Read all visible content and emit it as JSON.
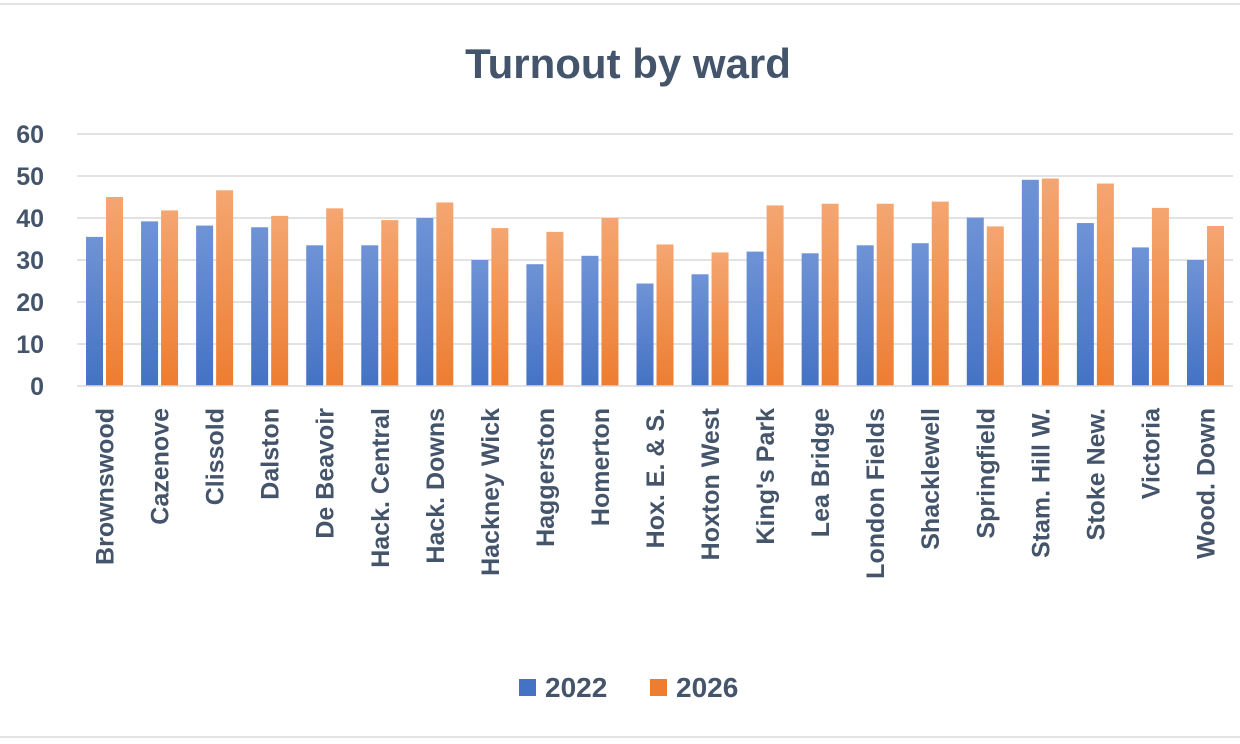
{
  "chart_data": {
    "type": "bar",
    "title": "Turnout by ward",
    "xlabel": "",
    "ylabel": "",
    "ylim": [
      0,
      60
    ],
    "yticks": [
      0,
      10,
      20,
      30,
      40,
      50,
      60
    ],
    "grid": true,
    "legend_position": "bottom",
    "categories": [
      "Brownswood",
      "Cazenove",
      "Clissold",
      "Dalston",
      "De Beavoir",
      "Hack. Central",
      "Hack. Downs",
      "Hackney Wick",
      "Haggerston",
      "Homerton",
      "Hox. E. & S.",
      "Hoxton West",
      "King's Park",
      "Lea Bridge",
      "London Fields",
      "Shacklewell",
      "Springfield",
      "Stam. Hill W.",
      "Stoke New.",
      "Victoria",
      "Wood. Down"
    ],
    "series": [
      {
        "name": "2022",
        "color": "#4472c4",
        "values": [
          35.5,
          39.2,
          38.2,
          37.8,
          33.5,
          33.5,
          40.0,
          30.0,
          29.0,
          31.0,
          24.4,
          26.6,
          32.0,
          31.6,
          33.5,
          34.0,
          40.1,
          49.1,
          38.8,
          33.0,
          30.0
        ]
      },
      {
        "name": "2026",
        "color": "#ed7d31",
        "values": [
          45.0,
          41.8,
          46.6,
          40.5,
          42.3,
          39.5,
          43.7,
          37.6,
          36.7,
          40.0,
          33.7,
          31.8,
          43.0,
          43.4,
          43.4,
          43.9,
          38.0,
          49.4,
          48.2,
          42.4,
          38.1
        ]
      }
    ]
  }
}
